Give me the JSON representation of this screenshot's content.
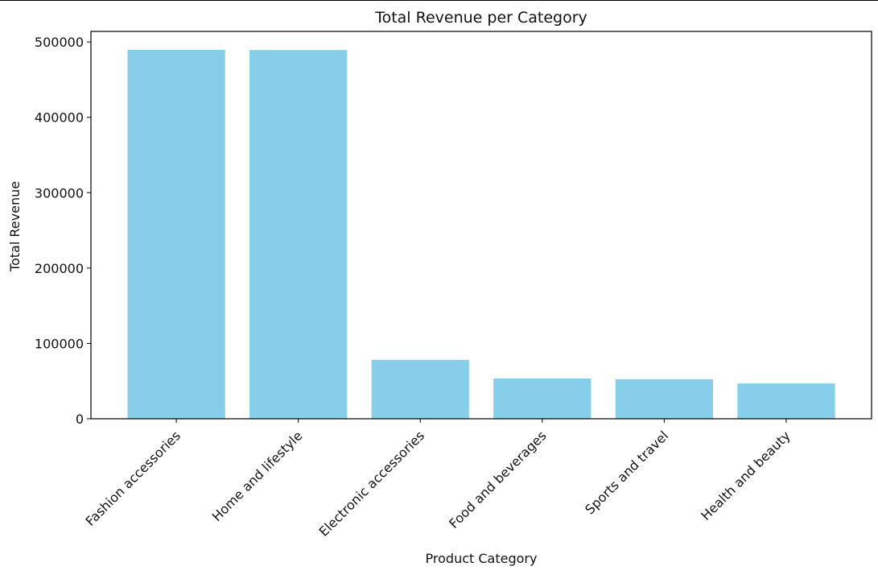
{
  "chart_data": {
    "type": "bar",
    "title": "Total Revenue per Category",
    "xlabel": "Product Category",
    "ylabel": "Total Revenue",
    "categories": [
      "Fashion accessories",
      "Home and lifestyle",
      "Electronic accessories",
      "Food and beverages",
      "Sports and travel",
      "Health and beauty"
    ],
    "values": [
      489480,
      489250,
      78175,
      53471,
      52497,
      46851
    ],
    "ylim": [
      0,
      514000
    ],
    "yticks": [
      0,
      100000,
      200000,
      300000,
      400000,
      500000
    ],
    "ytick_labels": [
      "0",
      "100000",
      "200000",
      "300000",
      "400000",
      "500000"
    ],
    "bar_color": "#87CEEB",
    "grid": false,
    "legend": "none",
    "x_tick_rotation_deg": 45
  }
}
